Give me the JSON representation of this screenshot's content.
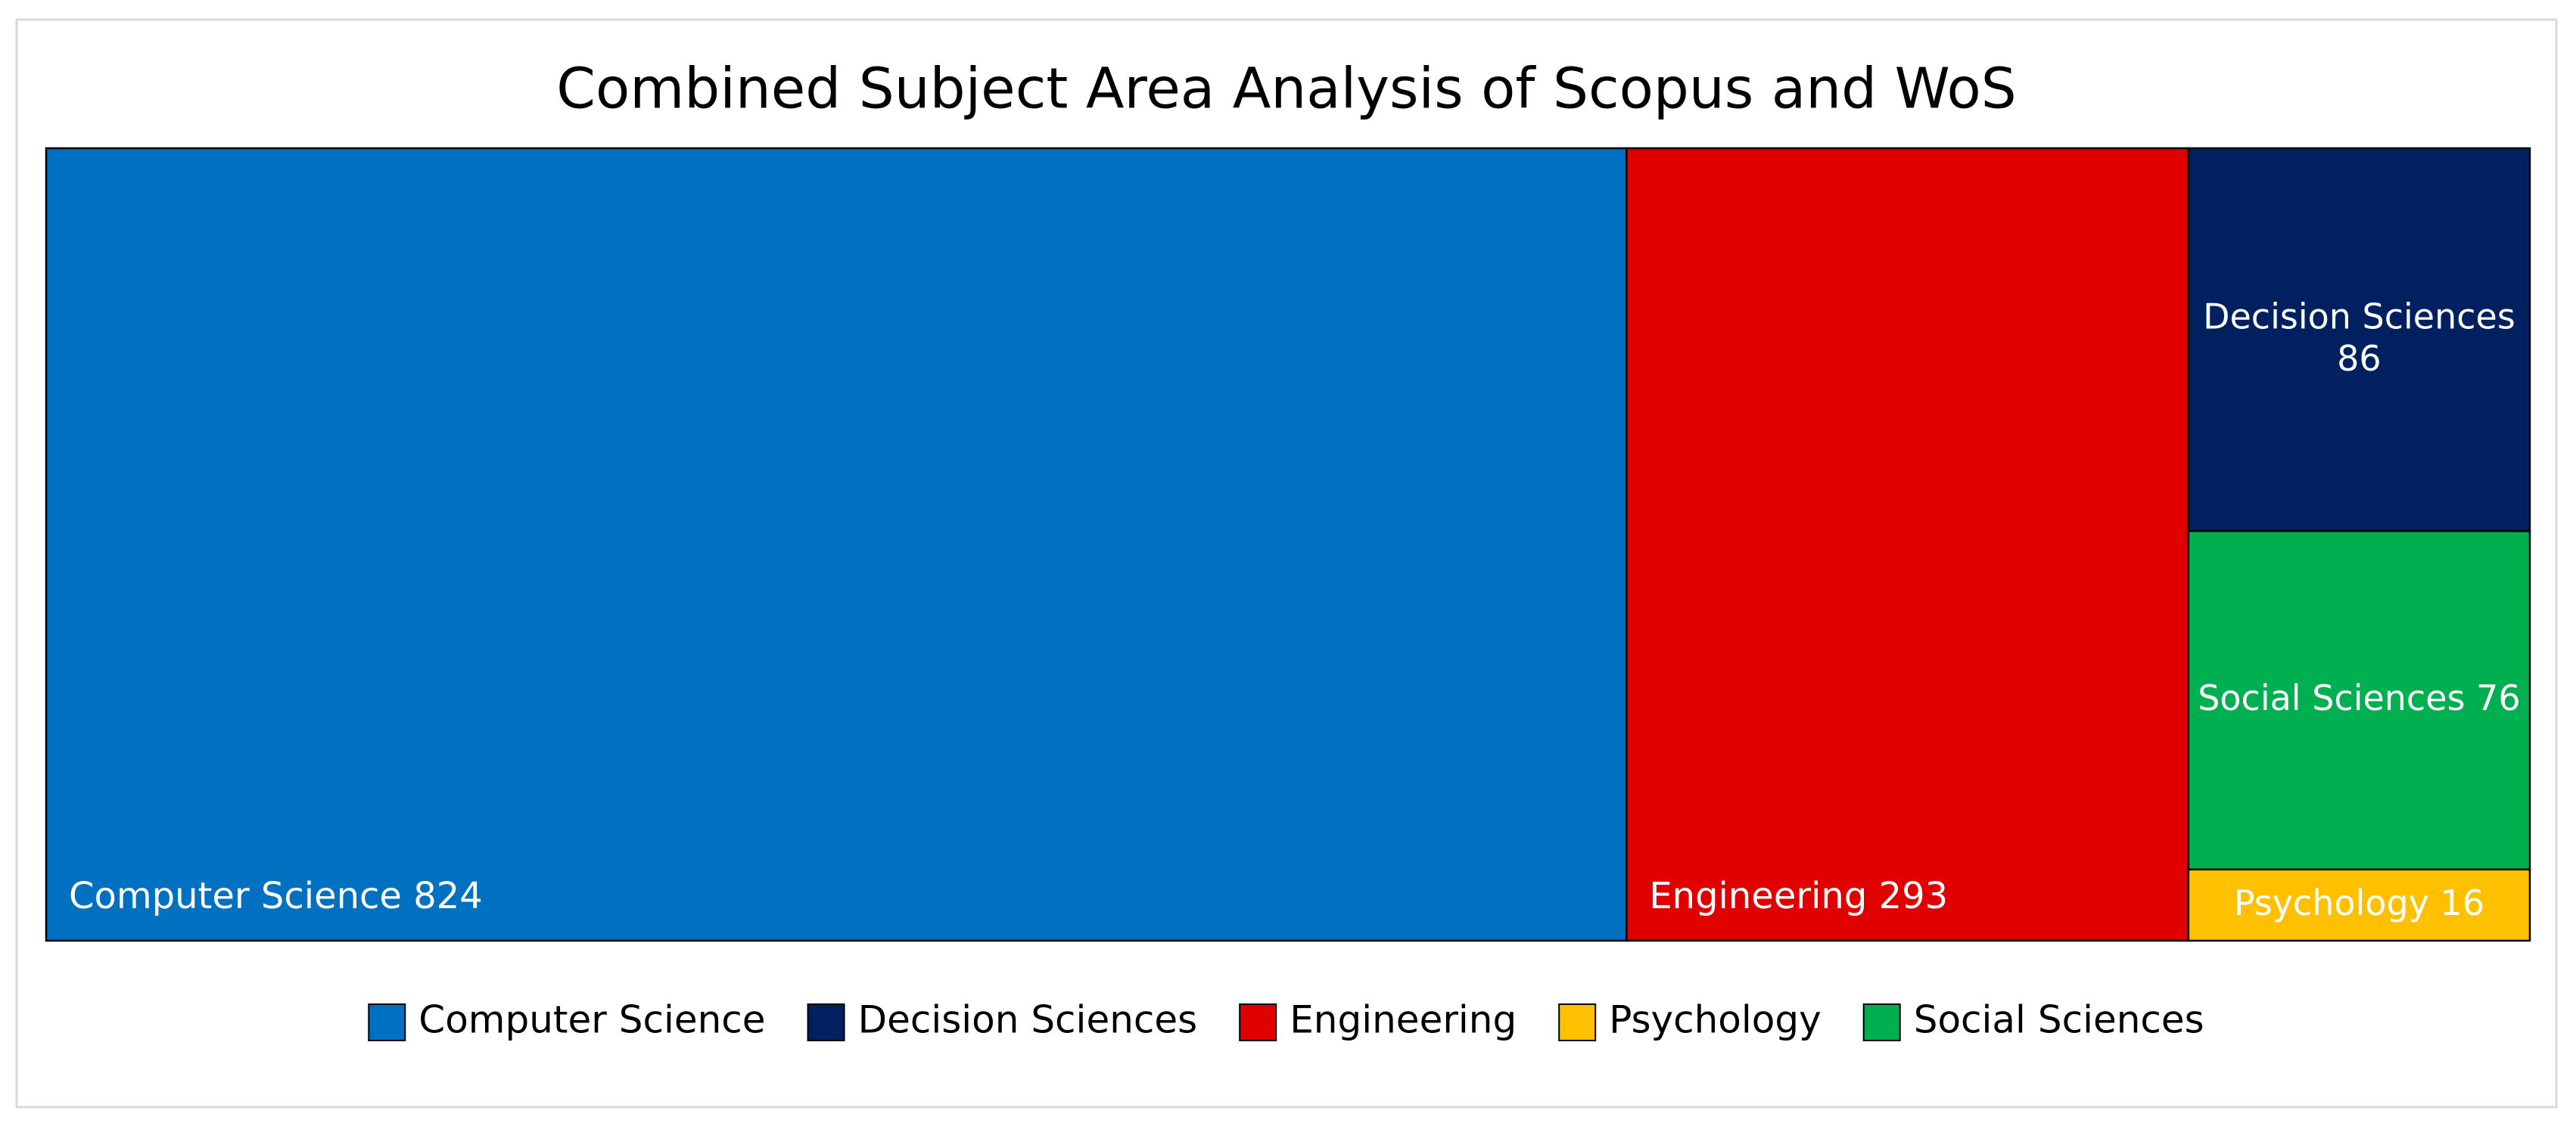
{
  "chart_data": {
    "type": "treemap",
    "title": "Combined Subject Area Analysis of Scopus and WoS",
    "categories": [
      "Computer Science",
      "Engineering",
      "Decision Sciences",
      "Social Sciences",
      "Psychology"
    ],
    "values": [
      824,
      293,
      86,
      76,
      16
    ],
    "colors": [
      "#0070c0",
      "#e00000",
      "#002060",
      "#00b050",
      "#ffc000"
    ],
    "legend": "bottom"
  }
}
